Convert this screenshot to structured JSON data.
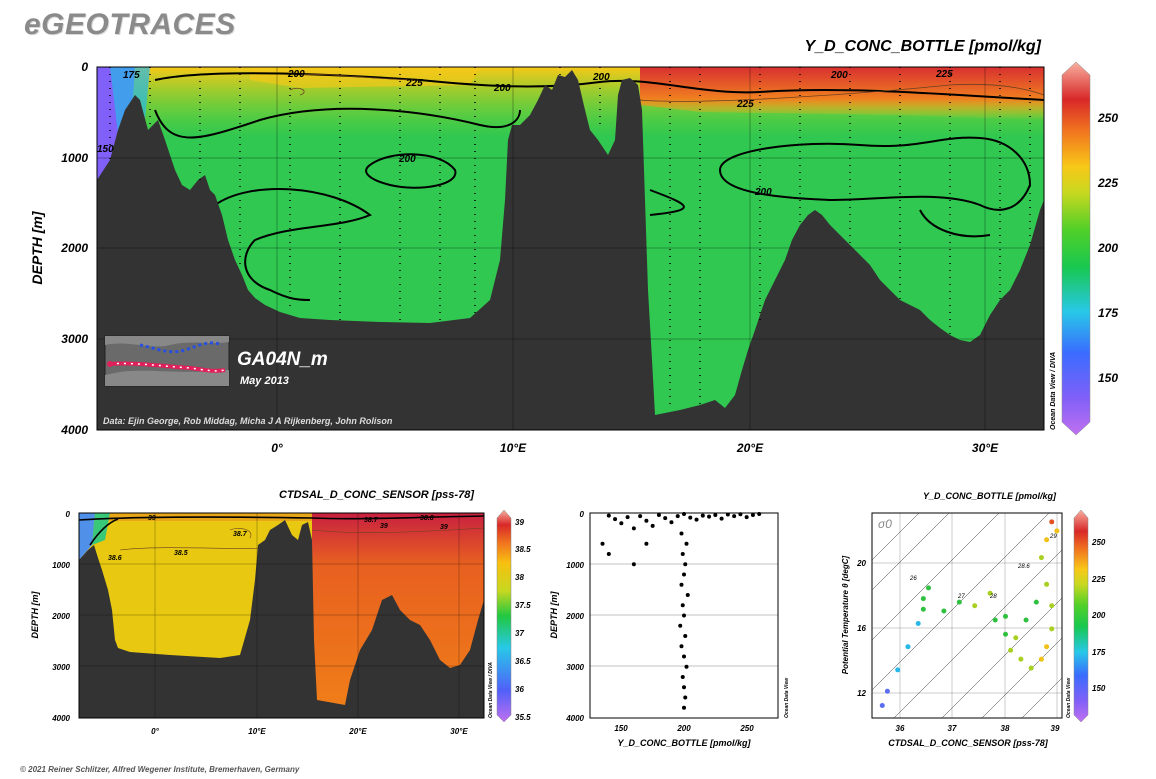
{
  "brand": "eGEOTRACES",
  "footer": "© 2021 Reiner Schlitzer, Alfred Wegener Institute, Bremerhaven, Germany",
  "main": {
    "title": "Y_D_CONC_BOTTLE [pmol/kg]",
    "ylabel": "DEPTH [m]",
    "yticks": [
      "0",
      "1000",
      "2000",
      "3000",
      "4000"
    ],
    "xticks": [
      "0°",
      "10°E",
      "20°E",
      "30°E"
    ],
    "colorbar_ticks": [
      "250",
      "225",
      "200",
      "175",
      "150"
    ],
    "odv_label": "Ocean Data View / DIVA",
    "section_name": "GA04N_m",
    "section_date": "May 2013",
    "credits": "Data: Ejin George, Rob Middag, Micha J A Rijkenberg, John Rolison",
    "contour_labels": [
      "175",
      "200",
      "225",
      "200",
      "200",
      "225",
      "200",
      "225",
      "200",
      "200",
      "150"
    ]
  },
  "salinity": {
    "title": "CTDSAL_D_CONC_SENSOR [pss-78]",
    "ylabel": "DEPTH [m]",
    "yticks": [
      "0",
      "1000",
      "2000",
      "3000",
      "4000"
    ],
    "xticks": [
      "0°",
      "10°E",
      "20°E",
      "30°E"
    ],
    "colorbar_ticks": [
      "39",
      "38.5",
      "38",
      "37.5",
      "37",
      "36.5",
      "36",
      "35.5"
    ],
    "odv_label": "Ocean Data View / DIVA",
    "contour_labels": [
      "38.7",
      "38.5",
      "38.6",
      "39",
      "38.7",
      "38.8",
      "39",
      "39"
    ]
  },
  "profile": {
    "xlabel": "Y_D_CONC_BOTTLE [pmol/kg]",
    "ylabel": "DEPTH [m]",
    "yticks": [
      "0",
      "1000",
      "2000",
      "3000",
      "4000"
    ],
    "xticks": [
      "150",
      "200",
      "250"
    ],
    "odv_label": "Ocean Data View"
  },
  "ts": {
    "title": "Y_D_CONC_BOTTLE [pmol/kg]",
    "xlabel": "CTDSAL_D_CONC_SENSOR [pss-78]",
    "ylabel": "Potential Temperature θ [degC]",
    "xticks": [
      "36",
      "37",
      "38",
      "39"
    ],
    "yticks": [
      "20",
      "16",
      "12"
    ],
    "colorbar_ticks": [
      "250",
      "225",
      "200",
      "175",
      "150"
    ],
    "sigma_label": "σ0",
    "isopycnal_labels": [
      "26",
      "27",
      "28",
      "28.6",
      "29"
    ],
    "odv_label": "Ocean Data View"
  },
  "chart_data": [
    {
      "type": "heatmap",
      "title": "Y_D_CONC_BOTTLE [pmol/kg]",
      "ylabel": "DEPTH [m]",
      "xlim": [
        -7.5,
        32.5
      ],
      "ylim": [
        4000,
        0
      ],
      "color_range": [
        130,
        270
      ],
      "colorbar_ticks": [
        150,
        175,
        200,
        225,
        250
      ]
    },
    {
      "type": "heatmap",
      "title": "CTDSAL_D_CONC_SENSOR [pss-78]",
      "ylabel": "DEPTH [m]",
      "xlim": [
        -7.5,
        32.5
      ],
      "ylim": [
        4000,
        0
      ],
      "color_range": [
        35.5,
        39.2
      ],
      "colorbar_ticks": [
        35.5,
        36,
        36.5,
        37,
        37.5,
        38,
        38.5,
        39
      ]
    },
    {
      "type": "scatter",
      "xlabel": "Y_D_CONC_BOTTLE [pmol/kg]",
      "ylabel": "DEPTH [m]",
      "xlim": [
        125,
        275
      ],
      "ylim": [
        4000,
        0
      ],
      "points": [
        [
          140,
          50
        ],
        [
          145,
          120
        ],
        [
          150,
          200
        ],
        [
          155,
          80
        ],
        [
          160,
          300
        ],
        [
          165,
          60
        ],
        [
          170,
          150
        ],
        [
          175,
          250
        ],
        [
          180,
          40
        ],
        [
          185,
          100
        ],
        [
          190,
          180
        ],
        [
          195,
          60
        ],
        [
          200,
          20
        ],
        [
          205,
          90
        ],
        [
          210,
          130
        ],
        [
          215,
          50
        ],
        [
          220,
          70
        ],
        [
          225,
          40
        ],
        [
          230,
          110
        ],
        [
          235,
          30
        ],
        [
          240,
          60
        ],
        [
          245,
          25
        ],
        [
          250,
          80
        ],
        [
          255,
          40
        ],
        [
          260,
          20
        ],
        [
          198,
          400
        ],
        [
          202,
          600
        ],
        [
          199,
          800
        ],
        [
          201,
          1000
        ],
        [
          200,
          1200
        ],
        [
          198,
          1400
        ],
        [
          203,
          1600
        ],
        [
          199,
          1800
        ],
        [
          200,
          2000
        ],
        [
          197,
          2200
        ],
        [
          201,
          2400
        ],
        [
          198,
          2600
        ],
        [
          200,
          2800
        ],
        [
          202,
          3000
        ],
        [
          199,
          3200
        ],
        [
          200,
          3400
        ],
        [
          201,
          3600
        ],
        [
          200,
          3800
        ],
        [
          135,
          600
        ],
        [
          140,
          800
        ],
        [
          160,
          1000
        ],
        [
          170,
          600
        ]
      ]
    },
    {
      "type": "scatter",
      "xlabel": "CTDSAL_D_CONC_SENSOR [pss-78]",
      "ylabel": "Potential Temperature θ [degC]",
      "xlim": [
        35.5,
        39.2
      ],
      "ylim": [
        10.5,
        22
      ],
      "color_range": [
        130,
        270
      ],
      "points": [
        [
          35.7,
          11.2,
          150
        ],
        [
          35.8,
          12,
          160
        ],
        [
          36,
          13.2,
          170
        ],
        [
          36.2,
          14.5,
          180
        ],
        [
          36.4,
          15.8,
          185
        ],
        [
          36.5,
          16.6,
          190
        ],
        [
          36.5,
          17.2,
          190
        ],
        [
          36.6,
          17.8,
          195
        ],
        [
          36.9,
          16.5,
          200
        ],
        [
          37.2,
          17,
          205
        ],
        [
          37.5,
          16.8,
          210
        ],
        [
          37.8,
          17.5,
          215
        ],
        [
          37.9,
          16,
          205
        ],
        [
          38.1,
          15.2,
          200
        ],
        [
          38.2,
          14.3,
          210
        ],
        [
          38.4,
          13.8,
          215
        ],
        [
          38.6,
          13.3,
          225
        ],
        [
          38.8,
          13.8,
          230
        ],
        [
          38.9,
          14.5,
          235
        ],
        [
          39,
          15.5,
          225
        ],
        [
          39,
          16.8,
          210
        ],
        [
          38.9,
          18,
          215
        ],
        [
          38.8,
          19.5,
          225
        ],
        [
          38.9,
          20.5,
          230
        ],
        [
          39,
          21.5,
          240
        ],
        [
          39.1,
          21,
          235
        ],
        [
          38.7,
          17,
          200
        ],
        [
          38.5,
          16,
          205
        ],
        [
          38.3,
          15,
          210
        ],
        [
          38.1,
          16.2,
          200
        ]
      ]
    }
  ]
}
